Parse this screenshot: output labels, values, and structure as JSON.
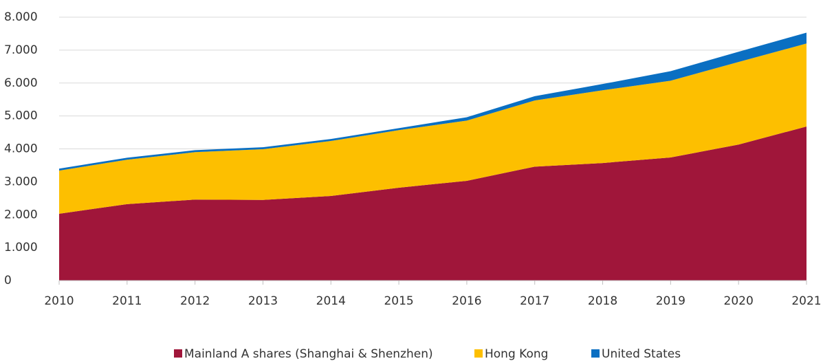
{
  "chart_data": {
    "type": "stacked_area",
    "x": [
      2010,
      2011,
      2012,
      2013,
      2014,
      2015,
      2016,
      2017,
      2018,
      2019,
      2020,
      2021
    ],
    "xlim": [
      2010,
      2021
    ],
    "xticks": [
      2010,
      2011,
      2012,
      2013,
      2014,
      2015,
      2016,
      2017,
      2018,
      2019,
      2020,
      2021
    ],
    "ylim": [
      0,
      8000
    ],
    "yticks": [
      0,
      {
        "value": 1000,
        "label": "1.000"
      },
      {
        "value": 2000,
        "label": "2.000"
      },
      {
        "value": 3000,
        "label": "3.000"
      },
      {
        "value": 4000,
        "label": "4.000"
      },
      {
        "value": 5000,
        "label": "5.000"
      },
      {
        "value": 6000,
        "label": "6.000"
      },
      {
        "value": 7000,
        "label": "7.000"
      },
      {
        "value": 8000,
        "label": "8.000"
      }
    ],
    "grid": true,
    "legend": "bottom",
    "series": [
      {
        "name": "Mainland A shares (Shanghai & Shenzhen)",
        "color": "#a0163a",
        "values": [
          2030,
          2320,
          2460,
          2450,
          2570,
          2820,
          3030,
          3460,
          3570,
          3740,
          4130,
          4680
        ]
      },
      {
        "name": "Hong Kong",
        "color": "#fdbf00",
        "values": [
          1310,
          1350,
          1440,
          1540,
          1670,
          1750,
          1830,
          2010,
          2210,
          2330,
          2510,
          2520
        ]
      },
      {
        "name": "United States",
        "color": "#0a6fc2",
        "values": [
          60,
          60,
          60,
          60,
          60,
          60,
          100,
          130,
          190,
          290,
          310,
          330
        ]
      }
    ]
  }
}
